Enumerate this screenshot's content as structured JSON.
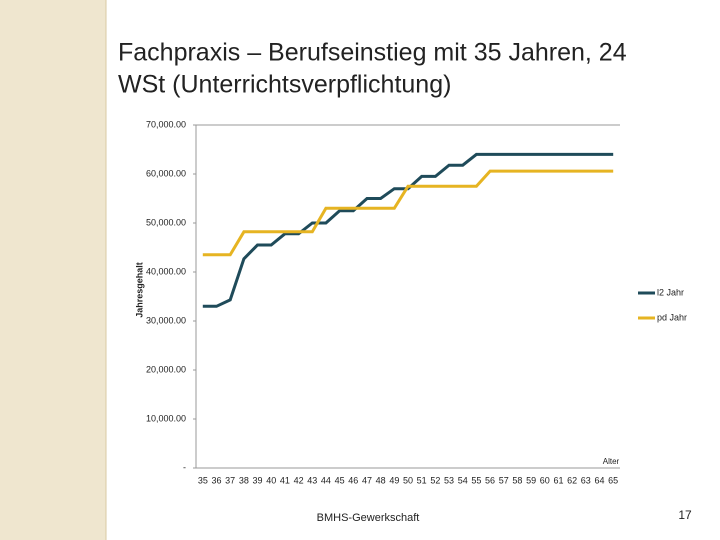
{
  "slide": {
    "title_line1": "Fachpraxis – Berufseinstieg mit 35 Jahren, 24",
    "title_line2": "WSt (Unterrichtsverpflichtung)",
    "footer": "BMHS-Gewerkschaft",
    "page_number": "17"
  },
  "chart_data": {
    "type": "line",
    "y_label": "Jahresgehalt",
    "x_label": "Alter",
    "categories": [
      "35",
      "36",
      "37",
      "38",
      "39",
      "40",
      "41",
      "42",
      "43",
      "44",
      "45",
      "46",
      "47",
      "48",
      "49",
      "50",
      "51",
      "52",
      "53",
      "54",
      "55",
      "56",
      "57",
      "58",
      "59",
      "60",
      "61",
      "62",
      "63",
      "64",
      "65"
    ],
    "series": [
      {
        "name": "l2 Jahr",
        "color": "#1f4b5a",
        "values": [
          33000,
          33000,
          34300,
          42700,
          45500,
          45500,
          47800,
          47800,
          50000,
          50000,
          52500,
          52500,
          55000,
          55000,
          57000,
          57000,
          59500,
          59500,
          61800,
          61800,
          64000,
          64000,
          64000,
          64000,
          64000,
          64000,
          64000,
          64000,
          64000,
          64000,
          64000
        ]
      },
      {
        "name": "pd Jahr",
        "color": "#e6b422",
        "values": [
          43500,
          43500,
          43500,
          48200,
          48200,
          48200,
          48200,
          48200,
          48200,
          53000,
          53000,
          53000,
          53000,
          53000,
          53000,
          57500,
          57500,
          57500,
          57500,
          57500,
          57500,
          60600,
          60600,
          60600,
          60600,
          60600,
          60600,
          60600,
          60600,
          60600,
          60600
        ]
      }
    ],
    "ylim": [
      0,
      70000
    ],
    "yticks": [
      {
        "value": 0,
        "label": "-"
      },
      {
        "value": 10000,
        "label": "10,000.00"
      },
      {
        "value": 20000,
        "label": "20,000.00"
      },
      {
        "value": 30000,
        "label": "30,000.00"
      },
      {
        "value": 40000,
        "label": "40,000.00"
      },
      {
        "value": 50000,
        "label": "50,000.00"
      },
      {
        "value": 60000,
        "label": "60,000.00"
      },
      {
        "value": 70000,
        "label": "70,000.00"
      }
    ],
    "legend": "right"
  }
}
